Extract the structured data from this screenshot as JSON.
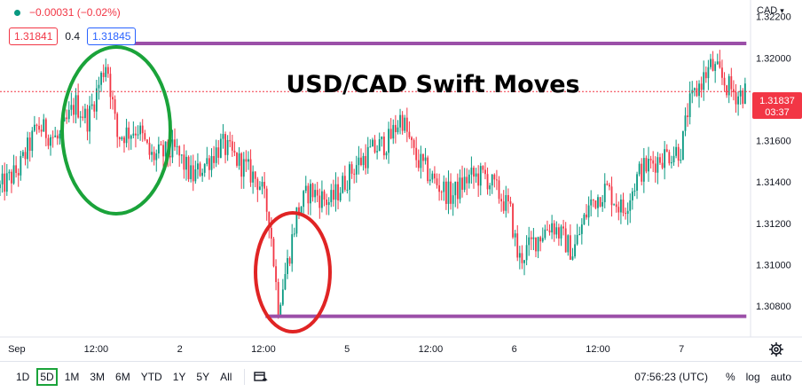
{
  "header": {
    "change": "−0.00031 (−0.02%)",
    "bid": "1.31841",
    "spread": "0.4",
    "ask": "1.31845",
    "currency": "CAD"
  },
  "annotation_title": "USD/CAD Swift Moves",
  "last_price": "1.31837",
  "countdown": "03:37",
  "colors": {
    "up": "#089981",
    "down": "#f23645",
    "purple": "#9b4fa8",
    "green_circle": "#1aa33a",
    "red_circle": "#e02424",
    "last_price_bg": "#f23645"
  },
  "chart_data": {
    "type": "candlestick",
    "title": "USD/CAD Swift Moves",
    "ylim": [
      1.3065,
      1.3228
    ],
    "y_ticks": [
      "1.32200",
      "1.32000",
      "1.31800",
      "1.31600",
      "1.31400",
      "1.31200",
      "1.31000",
      "1.30800"
    ],
    "x_ticks": [
      "Sep",
      "12:00",
      "2",
      "12:00",
      "5",
      "12:00",
      "6",
      "12:00",
      "7"
    ],
    "x_tick_pos": [
      0.1,
      2.0,
      4.0,
      6.0,
      8.0,
      10.0,
      12.0,
      14.0,
      16.0
    ],
    "x_range": [
      -0.3,
      17.65
    ],
    "key_points": [
      [
        -0.3,
        1.3137
      ],
      [
        0.15,
        1.3146
      ],
      [
        0.6,
        1.3167
      ],
      [
        1.1,
        1.316
      ],
      [
        1.5,
        1.3178
      ],
      [
        1.8,
        1.317
      ],
      [
        2.25,
        1.3199
      ],
      [
        2.5,
        1.3162
      ],
      [
        3.0,
        1.3166
      ],
      [
        3.3,
        1.3152
      ],
      [
        3.9,
        1.3155
      ],
      [
        4.3,
        1.3142
      ],
      [
        5.0,
        1.3158
      ],
      [
        5.5,
        1.3148
      ],
      [
        5.9,
        1.314
      ],
      [
        6.15,
        1.3122
      ],
      [
        6.35,
        1.308
      ],
      [
        6.6,
        1.3103
      ],
      [
        6.8,
        1.3125
      ],
      [
        7.1,
        1.3136
      ],
      [
        7.6,
        1.313
      ],
      [
        8.2,
        1.3148
      ],
      [
        8.6,
        1.3155
      ],
      [
        9.0,
        1.316
      ],
      [
        9.3,
        1.3172
      ],
      [
        9.6,
        1.3153
      ],
      [
        10.1,
        1.314
      ],
      [
        10.5,
        1.3133
      ],
      [
        10.9,
        1.3142
      ],
      [
        11.3,
        1.3143
      ],
      [
        11.6,
        1.3135
      ],
      [
        11.9,
        1.3126
      ],
      [
        12.1,
        1.3102
      ],
      [
        12.5,
        1.3112
      ],
      [
        12.9,
        1.312
      ],
      [
        13.4,
        1.3106
      ],
      [
        13.8,
        1.3129
      ],
      [
        14.2,
        1.3137
      ],
      [
        14.6,
        1.3126
      ],
      [
        15.0,
        1.3145
      ],
      [
        15.5,
        1.3152
      ],
      [
        16.0,
        1.3156
      ],
      [
        16.15,
        1.3175
      ],
      [
        16.45,
        1.3188
      ],
      [
        16.7,
        1.3196
      ],
      [
        16.9,
        1.3192
      ],
      [
        17.1,
        1.3186
      ],
      [
        17.35,
        1.3182
      ],
      [
        17.55,
        1.3184
      ]
    ],
    "resistance": 1.3207,
    "support": 1.3075,
    "last_price": 1.31837
  },
  "toolbar": {
    "ranges": [
      "1D",
      "5D",
      "1M",
      "3M",
      "6M",
      "YTD",
      "1Y",
      "5Y",
      "All"
    ],
    "active_range": "5D",
    "clock": "07:56:23 (UTC)",
    "percent": "%",
    "log": "log",
    "auto": "auto"
  }
}
